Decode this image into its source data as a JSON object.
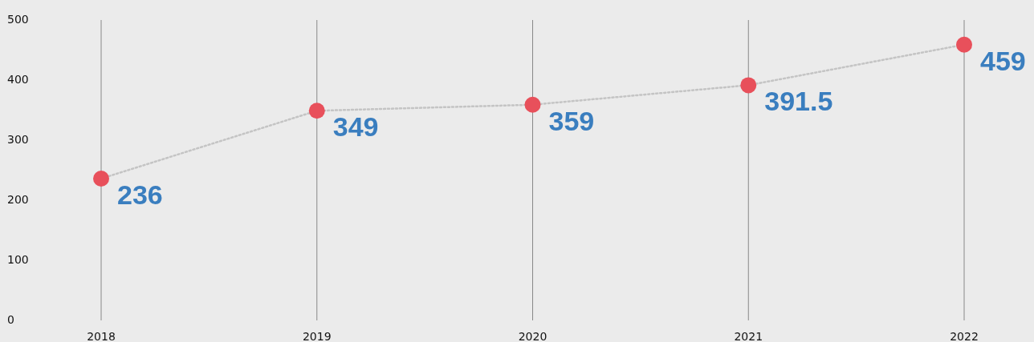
{
  "chart_data": {
    "type": "line",
    "categories": [
      "2018",
      "2019",
      "2020",
      "2021",
      "2022"
    ],
    "series": [
      {
        "color": "#c4c4c4",
        "colors": [
          "#e8505b",
          "#e8505b",
          "#e8505b",
          "#e8505b",
          "#e8505b"
        ],
        "values": [
          236,
          349,
          359,
          391.5,
          459
        ]
      }
    ],
    "ylim": [
      0,
      500
    ],
    "yticks": [
      0,
      100,
      200,
      300,
      400,
      500
    ],
    "grid": "x",
    "marker": "circle",
    "line_style": "dotted",
    "data_labels": true
  }
}
